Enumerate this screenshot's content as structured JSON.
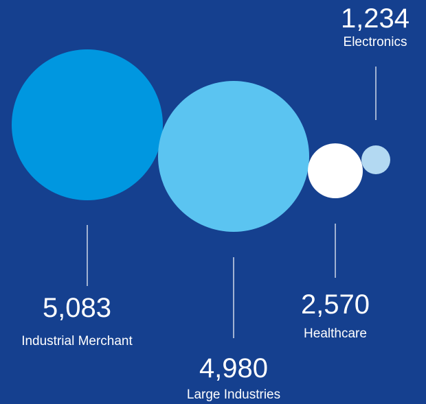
{
  "chart_data": {
    "type": "bubble",
    "categories": [
      "Industrial Merchant",
      "Large Industries",
      "Healthcare",
      "Electronics"
    ],
    "values": [
      5083,
      4980,
      2570,
      1234
    ],
    "value_labels": [
      "5,083",
      "4,980",
      "2,570",
      "1,234"
    ],
    "colors": [
      "#0097e0",
      "#5bc4f1",
      "#ffffff",
      "#b3d9f2"
    ],
    "background": "#15408f",
    "text_color": "#ffffff"
  }
}
